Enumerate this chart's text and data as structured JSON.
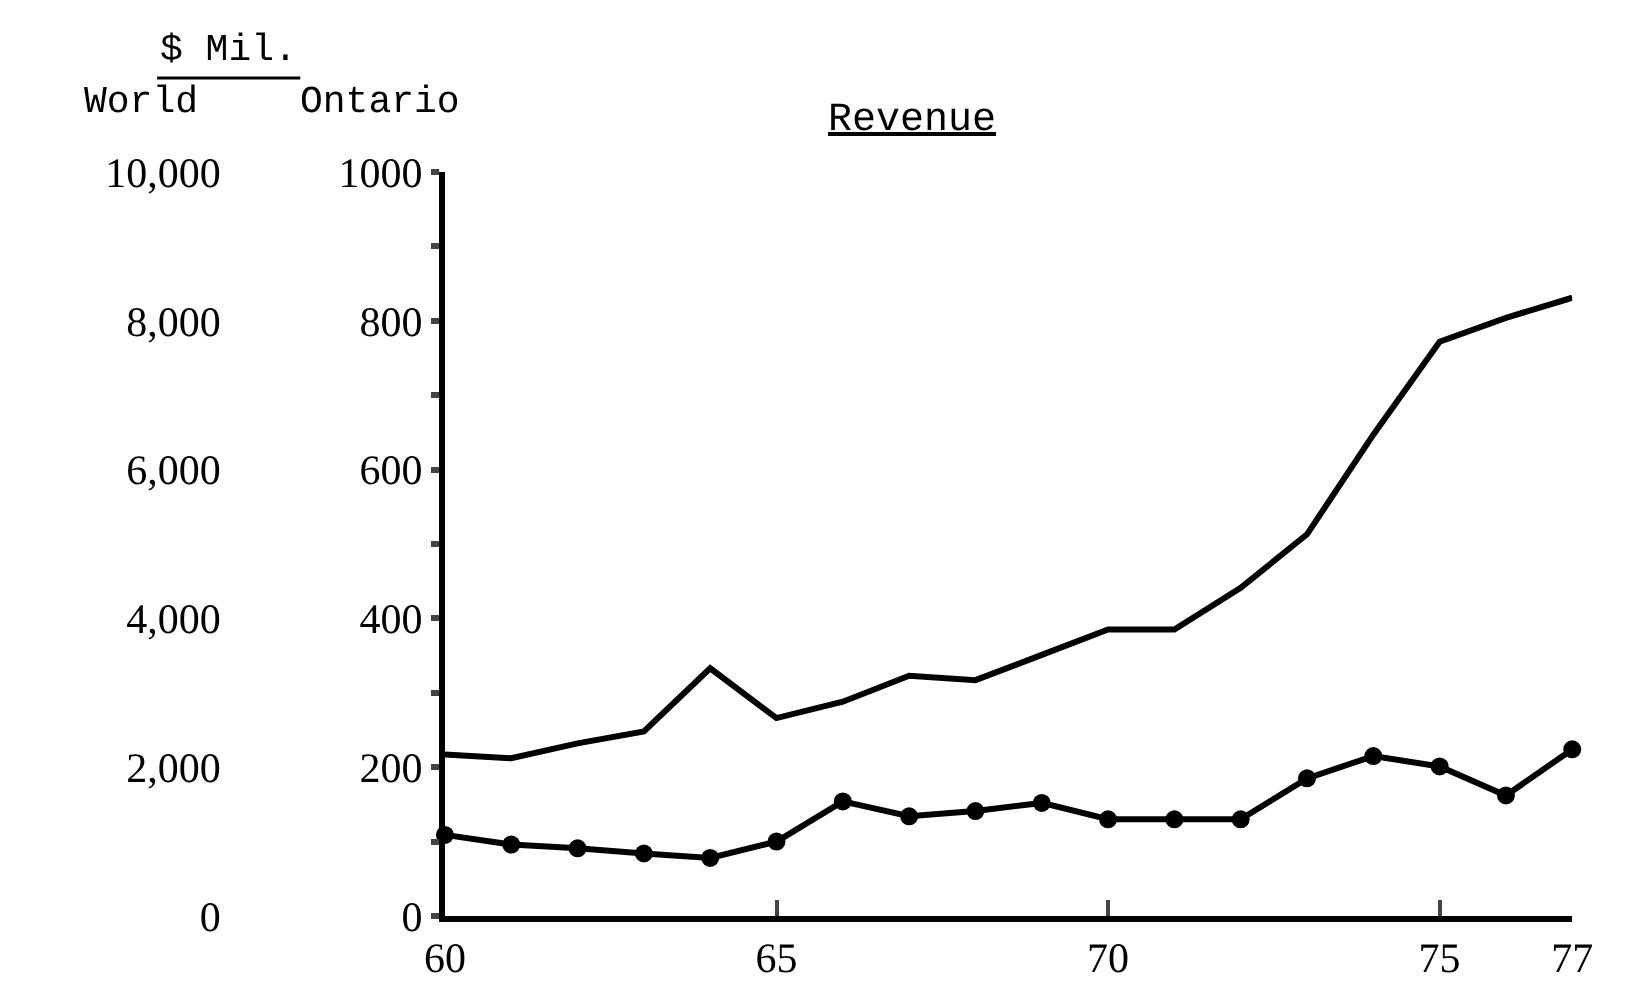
{
  "chart_data": {
    "type": "line",
    "title": "Revenue",
    "ylabel": "Ontario",
    "y2label": "World",
    "annotations": [
      "$ Mil."
    ],
    "x": [
      60,
      61,
      62,
      63,
      64,
      65,
      66,
      67,
      68,
      69,
      70,
      71,
      72,
      73,
      74,
      75,
      76,
      77
    ],
    "series": [
      {
        "color": "#000000",
        "axis": "y2",
        "marker": "none",
        "values": [
          2170,
          2120,
          2320,
          2480,
          3330,
          2660,
          2880,
          3230,
          3170,
          3510,
          3850,
          3850,
          4410,
          5130,
          6470,
          7720,
          8040,
          8310
        ]
      },
      {
        "color": "#000000",
        "marker": "circle",
        "values": [
          109,
          96,
          91,
          84,
          78,
          100,
          154,
          134,
          141,
          152,
          130,
          130,
          130,
          185,
          215,
          201,
          162,
          224
        ]
      }
    ],
    "xlim": [
      60,
      77
    ],
    "xticks": [
      60,
      65,
      70,
      75,
      77
    ],
    "ylim": [
      0,
      1000
    ],
    "yticks": [
      0,
      {
        "value": 100,
        "label": null
      },
      200,
      {
        "value": 300,
        "label": null
      },
      400,
      {
        "value": 500,
        "label": null
      },
      600,
      {
        "value": 700,
        "label": null
      },
      800,
      {
        "value": 900,
        "label": null
      },
      1000
    ],
    "y2lim": [
      0,
      10000
    ],
    "y2ticks": [
      {
        "value": 0,
        "label": "0"
      },
      {
        "value": 2000,
        "label": "2,000"
      },
      {
        "value": 4000,
        "label": "4,000"
      },
      {
        "value": 6000,
        "label": "6,000"
      },
      {
        "value": 8000,
        "label": "8,000"
      },
      {
        "value": 10000,
        "label": "10,000"
      }
    ],
    "line_style": "solid"
  }
}
